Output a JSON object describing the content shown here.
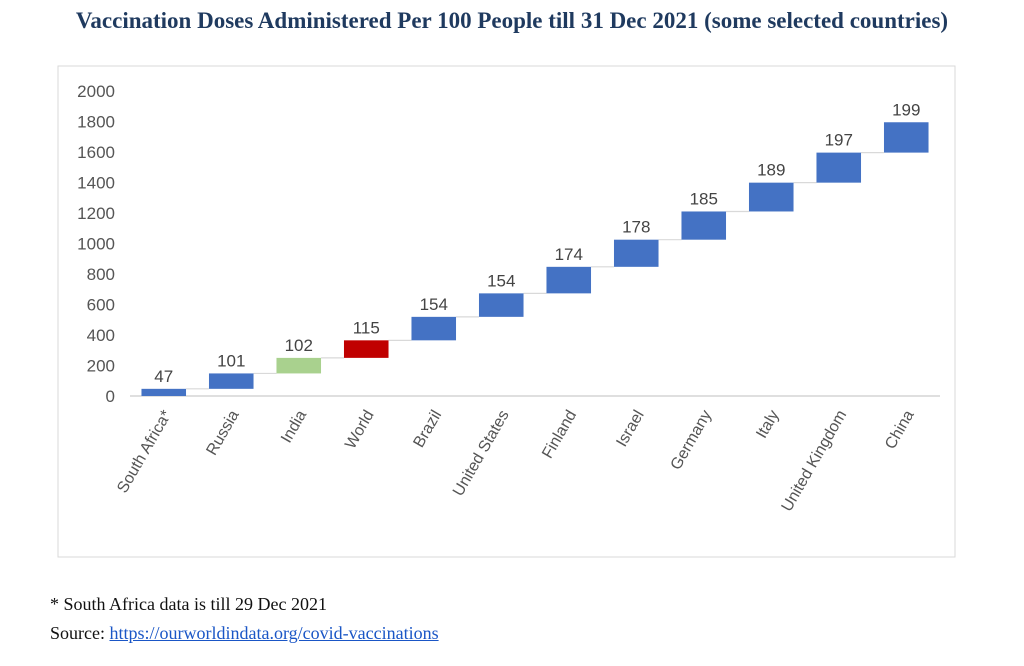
{
  "title": "Vaccination Doses Administered Per 100 People till 31 Dec 2021 (some selected countries)",
  "colors": {
    "base_bar": "#4472c4",
    "india_bar": "#a9d18e",
    "world_bar": "#c00000",
    "connector": "#d9d9d9",
    "title": "#1f3a5f",
    "link": "#1a56c6"
  },
  "chart_data": {
    "type": "bar",
    "subtype": "waterfall",
    "title": "Vaccination Doses Administered Per 100 People till 31 Dec 2021 (some selected countries)",
    "xlabel": "",
    "ylabel": "",
    "ylim": [
      0,
      2000
    ],
    "yticks": [
      0,
      200,
      400,
      600,
      800,
      1000,
      1200,
      1400,
      1600,
      1800,
      2000
    ],
    "grid": false,
    "categories": [
      "South Africa*",
      "Russia",
      "India",
      "World",
      "Brazil",
      "United States",
      "Finland",
      "Israel",
      "Germany",
      "Italy",
      "United Kingdom",
      "China"
    ],
    "values": [
      47,
      101,
      102,
      115,
      154,
      154,
      174,
      178,
      185,
      189,
      197,
      199
    ],
    "bar_colors": [
      "#4472c4",
      "#4472c4",
      "#a9d18e",
      "#c00000",
      "#4472c4",
      "#4472c4",
      "#4472c4",
      "#4472c4",
      "#4472c4",
      "#4472c4",
      "#4472c4",
      "#4472c4"
    ]
  },
  "footnote": "* South Africa data is till 29 Dec 2021",
  "source": {
    "label": "Source: ",
    "link_text": "https://ourworldindata.org/covid-vaccinations"
  }
}
